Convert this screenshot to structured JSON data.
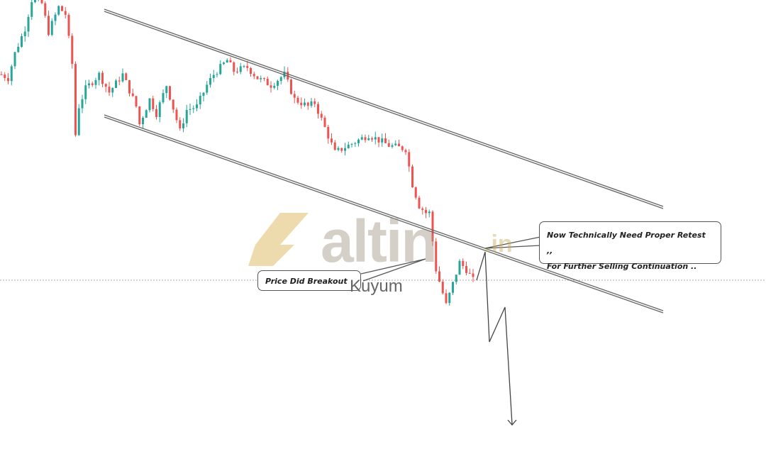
{
  "chart_data": {
    "type": "candlestick",
    "title": "",
    "xlabel": "",
    "ylabel": "",
    "grid": false,
    "price_path": [
      [
        0,
        566
      ],
      [
        2,
        561
      ],
      [
        4,
        596
      ],
      [
        7,
        631
      ],
      [
        9,
        671
      ],
      [
        12,
        666
      ],
      [
        14,
        626
      ],
      [
        17,
        661
      ],
      [
        19,
        651
      ],
      [
        21,
        581
      ],
      [
        22,
        481
      ],
      [
        23,
        521
      ],
      [
        25,
        546
      ],
      [
        29,
        566
      ],
      [
        32,
        541
      ],
      [
        36,
        566
      ],
      [
        40,
        521
      ],
      [
        41,
        496
      ],
      [
        44,
        531
      ],
      [
        46,
        511
      ],
      [
        49,
        551
      ],
      [
        53,
        486
      ],
      [
        55,
        516
      ],
      [
        58,
        521
      ],
      [
        61,
        551
      ],
      [
        63,
        566
      ],
      [
        67,
        586
      ],
      [
        69,
        571
      ],
      [
        73,
        576
      ],
      [
        76,
        561
      ],
      [
        80,
        551
      ],
      [
        84,
        566
      ],
      [
        87,
        531
      ],
      [
        91,
        521
      ],
      [
        93,
        526
      ],
      [
        96,
        491
      ],
      [
        99,
        456
      ],
      [
        103,
        466
      ],
      [
        109,
        481
      ],
      [
        115,
        466
      ],
      [
        120,
        461
      ],
      [
        122,
        411
      ],
      [
        124,
        381
      ],
      [
        126,
        371
      ],
      [
        127,
        371
      ],
      [
        129,
        291
      ],
      [
        132,
        241
      ],
      [
        134,
        271
      ],
      [
        136,
        301
      ],
      [
        138,
        291
      ],
      [
        140,
        276
      ]
    ],
    "up_color": "#26a69a",
    "down_color": "#ef5350",
    "trendlines": [
      "upper channel line",
      "lower channel line"
    ],
    "projection": "zigzag down arrow"
  },
  "annotations": {
    "breakout": "Price Did Breakout",
    "retest_line1": "Now Technically Need Proper Retest ,,",
    "retest_line2": "For Further Selling Continuation .."
  },
  "watermark": {
    "brand": "altin",
    "tld": ".in",
    "sub": "Kuyum"
  }
}
